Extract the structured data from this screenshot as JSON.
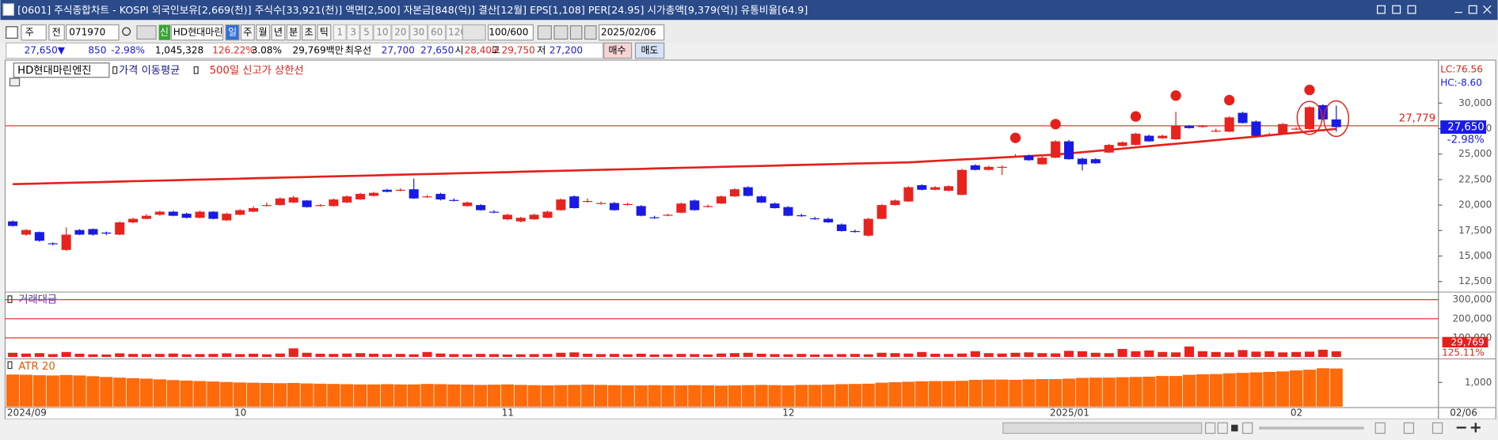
{
  "window": {
    "title": "[0601] 주식종합차트 - KOSPI 외국인보유[2,669(천)] 주식수[33,921(천)] 액면[2,500] 자본금[848(억)] 결산[12월] EPS[1,108] PER[24.95] 시가총액[9,379(억)] 유통비율[64.9]"
  },
  "toolbar": {
    "market": "주",
    "type": "전",
    "code": "071970",
    "stock_badge": "신",
    "stock_name": "HD현대마린",
    "periods": [
      "일",
      "주",
      "월",
      "년",
      "분",
      "초",
      "틱"
    ],
    "selected_period": 0,
    "minutes": [
      "1",
      "3",
      "5",
      "10",
      "20",
      "30",
      "60",
      "120"
    ],
    "count": "100/600",
    "date": "2025/02/06"
  },
  "quote": {
    "price": "27,650▼",
    "change": "850",
    "change_pct": "-2.98%",
    "volume": "1,045,328",
    "vol_ratio": "126.22%",
    "turnover": "3.08%",
    "amount": "29,769백만",
    "best_label": "최우선",
    "ask": "27,700",
    "bid": "27,650",
    "open_label": "시",
    "open": "28,400",
    "high_label": "고",
    "high": "29,750",
    "low_label": "저",
    "low": "27,200",
    "buy": "매수",
    "sell": "매도"
  },
  "chart_data": [
    {
      "type": "candlestick",
      "legend": [
        "HD현대마린엔진",
        "가격 이동평균"
      ],
      "lc": "LC:76.56",
      "hc": "HC:-8.60",
      "categories": [
        "2024/09",
        null,
        null,
        null,
        null,
        null,
        null,
        null,
        null,
        null,
        null,
        null,
        null,
        null,
        null,
        null,
        null,
        "10",
        null,
        null,
        null,
        null,
        null,
        null,
        null,
        null,
        null,
        null,
        null,
        null,
        null,
        null,
        null,
        null,
        null,
        null,
        null,
        "11",
        null,
        null,
        null,
        null,
        null,
        null,
        null,
        null,
        null,
        null,
        null,
        null,
        null,
        null,
        null,
        null,
        null,
        null,
        null,
        null,
        "12",
        null,
        null,
        null,
        null,
        null,
        null,
        null,
        null,
        null,
        null,
        null,
        null,
        null,
        null,
        null,
        null,
        null,
        null,
        null,
        "2025/01",
        null,
        null,
        null,
        null,
        null,
        null,
        null,
        null,
        null,
        null,
        null,
        null,
        null,
        null,
        null,
        null,
        null,
        "02",
        null,
        null,
        "02/06"
      ],
      "open": [
        18400,
        17100,
        17350,
        16250,
        15600,
        17550,
        17650,
        17300,
        17100,
        18300,
        18650,
        19050,
        19350,
        19150,
        18750,
        19350,
        18500,
        19050,
        19350,
        19950,
        20000,
        20250,
        20450,
        19950,
        19900,
        20250,
        20550,
        20900,
        21500,
        21450,
        21550,
        20800,
        21100,
        20500,
        19900,
        20000,
        19350,
        18600,
        18400,
        18600,
        18750,
        19500,
        20850,
        20350,
        20150,
        20200,
        20050,
        19900,
        18800,
        19000,
        19250,
        20450,
        19850,
        20150,
        20850,
        21750,
        20850,
        20150,
        19800,
        19000,
        18700,
        18650,
        18100,
        17450,
        17000,
        18650,
        20000,
        20350,
        21950,
        21500,
        21400,
        21000,
        23900,
        23450,
        23700,
        24750,
        24850,
        24000,
        24650,
        26250,
        24550,
        24500,
        25150,
        25800,
        25900,
        26800,
        26550,
        26450,
        27750,
        27700,
        27250,
        27200,
        29050,
        28200,
        26900,
        27000,
        27450,
        27450,
        29800,
        28400
      ],
      "high": [
        18500,
        17650,
        17400,
        16350,
        17800,
        17650,
        17700,
        17400,
        18400,
        18750,
        19100,
        19450,
        19450,
        19250,
        19450,
        19400,
        19250,
        19600,
        19900,
        20250,
        20750,
        20900,
        20500,
        20100,
        20650,
        20950,
        21200,
        21300,
        21600,
        21650,
        22600,
        21000,
        21200,
        20650,
        20350,
        20100,
        19500,
        19150,
        18850,
        19150,
        19450,
        20650,
        20950,
        20650,
        20350,
        20300,
        20250,
        20000,
        18950,
        19150,
        20250,
        20550,
        20050,
        20950,
        21650,
        21850,
        20950,
        20250,
        19900,
        19150,
        18850,
        18750,
        18200,
        17600,
        18750,
        20100,
        20550,
        21850,
        22050,
        21850,
        21950,
        23550,
        24000,
        23850,
        23900,
        25000,
        24950,
        24750,
        26350,
        26400,
        24650,
        24600,
        26000,
        26250,
        27100,
        26900,
        26900,
        29150,
        27850,
        27850,
        27500,
        28700,
        29150,
        28300,
        27100,
        28050,
        27650,
        29700,
        29900,
        29750
      ],
      "low": [
        17900,
        17000,
        16400,
        16050,
        15500,
        17050,
        17000,
        17050,
        17050,
        18200,
        18600,
        18950,
        18900,
        18700,
        18700,
        18600,
        18450,
        19000,
        19300,
        19850,
        19950,
        20200,
        19750,
        19850,
        19850,
        20200,
        20500,
        20850,
        21250,
        21350,
        20600,
        20700,
        20450,
        20350,
        19850,
        19450,
        19200,
        18500,
        18300,
        18550,
        18700,
        19450,
        19650,
        20250,
        20050,
        19450,
        19950,
        18900,
        18650,
        18900,
        19200,
        19450,
        19750,
        20100,
        20800,
        20850,
        20200,
        19650,
        18900,
        18850,
        18550,
        18250,
        17400,
        17300,
        16900,
        18600,
        19950,
        20300,
        21450,
        21450,
        21350,
        20950,
        23400,
        23400,
        22950,
        24650,
        24350,
        23950,
        24600,
        24450,
        23400,
        24050,
        25100,
        25750,
        25850,
        26200,
        26500,
        26400,
        27500,
        27600,
        27150,
        27150,
        28000,
        26750,
        26800,
        26950,
        27350,
        27400,
        28350,
        27200
      ],
      "close": [
        17950,
        17550,
        16500,
        16200,
        17100,
        17100,
        17100,
        17200,
        18300,
        18650,
        18950,
        19350,
        18950,
        18750,
        19350,
        18650,
        19150,
        19500,
        19700,
        20000,
        20650,
        20750,
        19800,
        20000,
        20550,
        20850,
        21100,
        21200,
        21300,
        21500,
        20650,
        20850,
        20550,
        20450,
        20250,
        19500,
        19300,
        19050,
        18750,
        19050,
        19350,
        20550,
        19700,
        20400,
        20200,
        19500,
        20100,
        18950,
        18750,
        19050,
        20150,
        19500,
        19900,
        20850,
        21550,
        20900,
        20250,
        19700,
        18950,
        18950,
        18650,
        18300,
        17450,
        17400,
        18650,
        20000,
        20450,
        21750,
        21500,
        21750,
        21850,
        23450,
        23450,
        23750,
        23750,
        24800,
        24400,
        24650,
        26250,
        24500,
        24000,
        24100,
        25900,
        26150,
        27000,
        26250,
        26800,
        27750,
        27550,
        27750,
        27300,
        28600,
        28050,
        26800,
        26950,
        27950,
        27500,
        29600,
        28400,
        27650
      ],
      "up_color": "#e8231e",
      "down_color": "#1a1ae6",
      "series": [
        {
          "name": "500일 신고가 상한선",
          "color": "#e3211c",
          "values": [
            22050,
            22080,
            22110,
            22150,
            22180,
            22210,
            22240,
            22270,
            22310,
            22340,
            22370,
            22400,
            22430,
            22470,
            22500,
            22530,
            22560,
            22590,
            22630,
            22660,
            22690,
            22720,
            22750,
            22790,
            22820,
            22850,
            22880,
            22910,
            22950,
            22980,
            23010,
            23040,
            23070,
            23110,
            23140,
            23170,
            23200,
            23230,
            23270,
            23300,
            23330,
            23360,
            23390,
            23430,
            23460,
            23490,
            23520,
            23550,
            23590,
            23620,
            23650,
            23680,
            23710,
            23750,
            23780,
            23810,
            23840,
            23870,
            23910,
            23940,
            23970,
            24000,
            24030,
            24070,
            24100,
            24130,
            24160,
            24190,
            24260,
            24330,
            24400,
            24470,
            24530,
            24600,
            24670,
            24740,
            24810,
            24880,
            24950,
            25070,
            25190,
            25300,
            25420,
            25540,
            25660,
            25780,
            25900,
            26010,
            26130,
            26250,
            26370,
            26490,
            26600,
            26720,
            26850,
            26980,
            27100,
            27230,
            27350,
            27470
          ]
        }
      ],
      "signals": [
        75,
        78,
        84,
        87,
        91,
        97
      ],
      "circled": [
        97,
        99
      ],
      "level": {
        "value": 27779,
        "label": "27,779"
      },
      "current": {
        "value": 27650,
        "label": "27,650",
        "change": "-2.98%"
      },
      "ylim": [
        11560,
        34030
      ],
      "yticks": [
        {
          "value": 12500,
          "label": "12,500"
        },
        {
          "value": 15000,
          "label": "15,000"
        },
        {
          "value": 17500,
          "label": "17,500"
        },
        {
          "value": 20000,
          "label": "20,000"
        },
        {
          "value": 22500,
          "label": "22,500"
        },
        {
          "value": 25000,
          "label": "25,000"
        },
        {
          "value": 27500,
          "label": "27,500"
        },
        {
          "value": 30000,
          "label": "30,000"
        }
      ]
    },
    {
      "type": "bar",
      "title": "거래대금",
      "color": "#e8231e",
      "values": [
        22000,
        18000,
        20000,
        15000,
        26000,
        17000,
        14000,
        13000,
        19000,
        16000,
        15000,
        16000,
        18000,
        14000,
        15000,
        16000,
        19000,
        15000,
        17000,
        14000,
        18000,
        45000,
        22000,
        17000,
        16000,
        18000,
        20000,
        17000,
        15000,
        16000,
        14000,
        26000,
        18000,
        15000,
        14000,
        16000,
        15000,
        13000,
        14000,
        15000,
        16000,
        22000,
        24000,
        17000,
        15000,
        16000,
        14000,
        17000,
        13000,
        14000,
        16000,
        15000,
        13000,
        18000,
        20000,
        22000,
        17000,
        15000,
        14000,
        16000,
        13000,
        14000,
        15000,
        16000,
        14000,
        22000,
        20000,
        18000,
        26000,
        17000,
        16000,
        18000,
        30000,
        20000,
        18000,
        22000,
        24000,
        20000,
        19000,
        32000,
        30000,
        22000,
        20000,
        42000,
        30000,
        34000,
        26000,
        24000,
        55000,
        30000,
        26000,
        24000,
        36000,
        28000,
        30000,
        24000,
        26000,
        28000,
        38000,
        29769
      ],
      "last_label": "29,769",
      "ratio_label": "125.11%",
      "ylim": [
        0,
        335000
      ],
      "yticks": [
        {
          "value": 100000,
          "label": "100,000"
        },
        {
          "value": 200000,
          "label": "200,000"
        },
        {
          "value": 300000,
          "label": "300,000"
        }
      ]
    },
    {
      "type": "bar",
      "title": "ATR 20",
      "color": "#ff6a0a",
      "values": [
        1330,
        1320,
        1300,
        1290,
        1310,
        1290,
        1260,
        1230,
        1200,
        1180,
        1160,
        1130,
        1100,
        1080,
        1060,
        1040,
        1020,
        1000,
        990,
        980,
        970,
        980,
        960,
        950,
        940,
        930,
        920,
        920,
        930,
        920,
        920,
        940,
        930,
        920,
        910,
        900,
        910,
        920,
        900,
        890,
        880,
        890,
        900,
        910,
        900,
        890,
        880,
        880,
        890,
        880,
        880,
        890,
        880,
        870,
        880,
        890,
        900,
        890,
        880,
        900,
        900,
        910,
        930,
        940,
        950,
        990,
        1010,
        1030,
        1050,
        1060,
        1060,
        1070,
        1110,
        1120,
        1120,
        1110,
        1130,
        1140,
        1140,
        1160,
        1190,
        1200,
        1200,
        1220,
        1230,
        1240,
        1270,
        1270,
        1320,
        1340,
        1350,
        1380,
        1400,
        1420,
        1440,
        1460,
        1500,
        1530,
        1590,
        1580
      ],
      "ylim": [
        0,
        1900
      ],
      "yticks": [
        {
          "value": 1000,
          "label": "1,000"
        }
      ]
    }
  ]
}
